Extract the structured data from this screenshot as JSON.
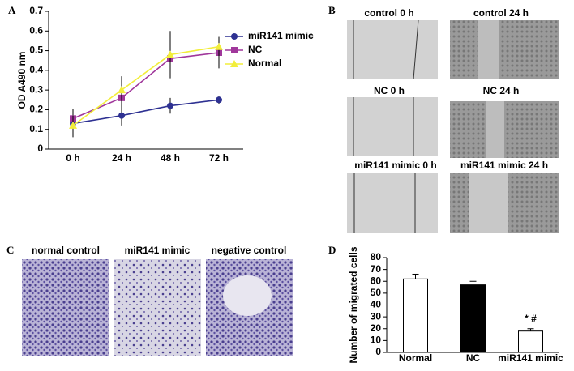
{
  "panel_labels": [
    "A",
    "B",
    "C",
    "D"
  ],
  "chart_data": [
    {
      "type": "line",
      "y_label": "OD A490 nm",
      "categories": [
        "0 h",
        "24 h",
        "48 h",
        "72 h"
      ],
      "ylim": [
        0,
        0.7
      ],
      "yticks": [
        0,
        0.1,
        0.2,
        0.3,
        0.4,
        0.5,
        0.6,
        0.7
      ],
      "series": [
        {
          "name": "miR141 mimic",
          "color": "#2e3192",
          "marker": "circle",
          "values": [
            0.13,
            0.17,
            0.22,
            0.25
          ],
          "errors": [
            0.07,
            0.05,
            0.04,
            0.02
          ]
        },
        {
          "name": "NC",
          "color": "#a0379b",
          "marker": "square",
          "values": [
            0.155,
            0.26,
            0.46,
            0.49
          ],
          "errors": [
            0.05,
            0.05,
            0.08,
            0.08
          ]
        },
        {
          "name": "Normal",
          "color": "#f2ee3a",
          "marker": "triangle",
          "values": [
            0.12,
            0.3,
            0.48,
            0.52
          ],
          "errors": [
            0.05,
            0.07,
            0.12,
            0.05
          ]
        }
      ]
    },
    {
      "type": "bar",
      "y_label": "Number of migrated cells",
      "categories": [
        "Normal",
        "NC",
        "miR141 mimic"
      ],
      "values": [
        62,
        57,
        18
      ],
      "errors": [
        4,
        3,
        2
      ],
      "colors": [
        "#ffffff",
        "#000000",
        "#ffffff"
      ],
      "annotations": [
        null,
        null,
        "* #"
      ],
      "ylim": [
        0,
        80
      ],
      "yticks": [
        0,
        10,
        20,
        30,
        40,
        50,
        60,
        70,
        80
      ]
    }
  ],
  "wound_healing": {
    "labels": [
      "control 0 h",
      "control 24 h",
      "NC 0 h",
      "NC 24 h",
      "miR141 mimic 0 h",
      "miR141 mimic 24 h"
    ]
  },
  "transwell": {
    "labels": [
      "normal control",
      "miR141 mimic",
      "negative control"
    ]
  }
}
